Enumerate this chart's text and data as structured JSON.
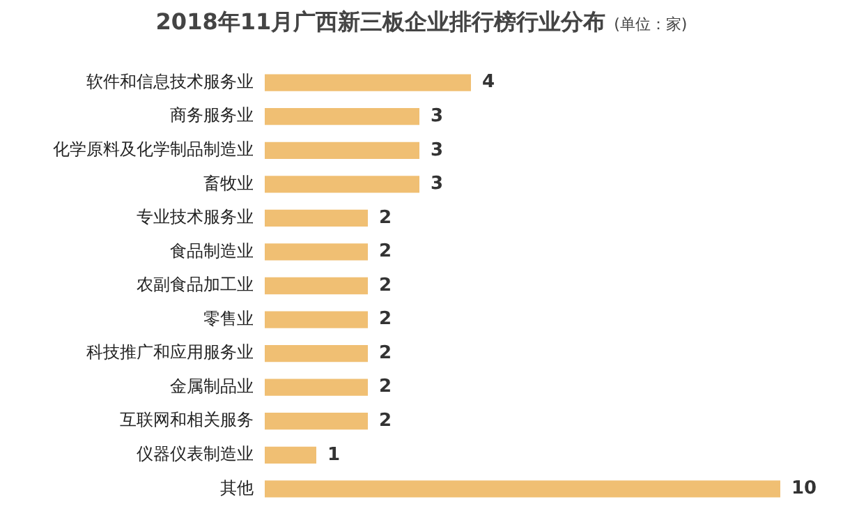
{
  "chart_data": {
    "type": "bar",
    "orientation": "horizontal",
    "title": "2018年11月广西新三板企业排行榜行业分布",
    "subtitle": "(单位：家)",
    "categories": [
      "软件和信息技术服务业",
      "商务服务业",
      "化学原料及化学制品制造业",
      "畜牧业",
      "专业技术服务业",
      "食品制造业",
      "农副食品加工业",
      "零售业",
      "科技推广和应用服务业",
      "金属制品业",
      "互联网和相关服务",
      "仪器仪表制造业",
      "其他"
    ],
    "values": [
      4,
      3,
      3,
      3,
      2,
      2,
      2,
      2,
      2,
      2,
      2,
      1,
      10
    ],
    "color": "#f0bf73",
    "data_labels": true,
    "grid": false,
    "legend": false,
    "tick_labels": "y"
  }
}
